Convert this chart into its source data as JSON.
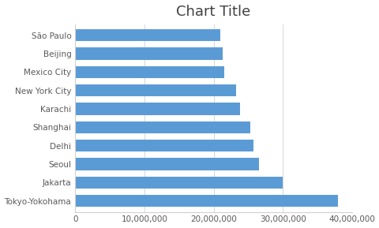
{
  "title": "Chart Title",
  "categories": [
    "Tokyo-Yokohama",
    "Jakarta",
    "Seoul",
    "Delhi",
    "Shanghai",
    "Karachi",
    "New York City",
    "Mexico City",
    "Beijing",
    "São Paulo"
  ],
  "values": [
    38000000,
    30000000,
    26500000,
    25800000,
    25300000,
    23800000,
    23200000,
    21500000,
    21300000,
    21000000
  ],
  "bar_color": "#5B9BD5",
  "background_color": "#FFFFFF",
  "xlim": [
    0,
    40000000
  ],
  "xticks": [
    0,
    10000000,
    20000000,
    30000000,
    40000000
  ],
  "title_fontsize": 13,
  "tick_fontsize": 7.5,
  "grid_color": "#D0D0D0",
  "bar_height": 0.65
}
